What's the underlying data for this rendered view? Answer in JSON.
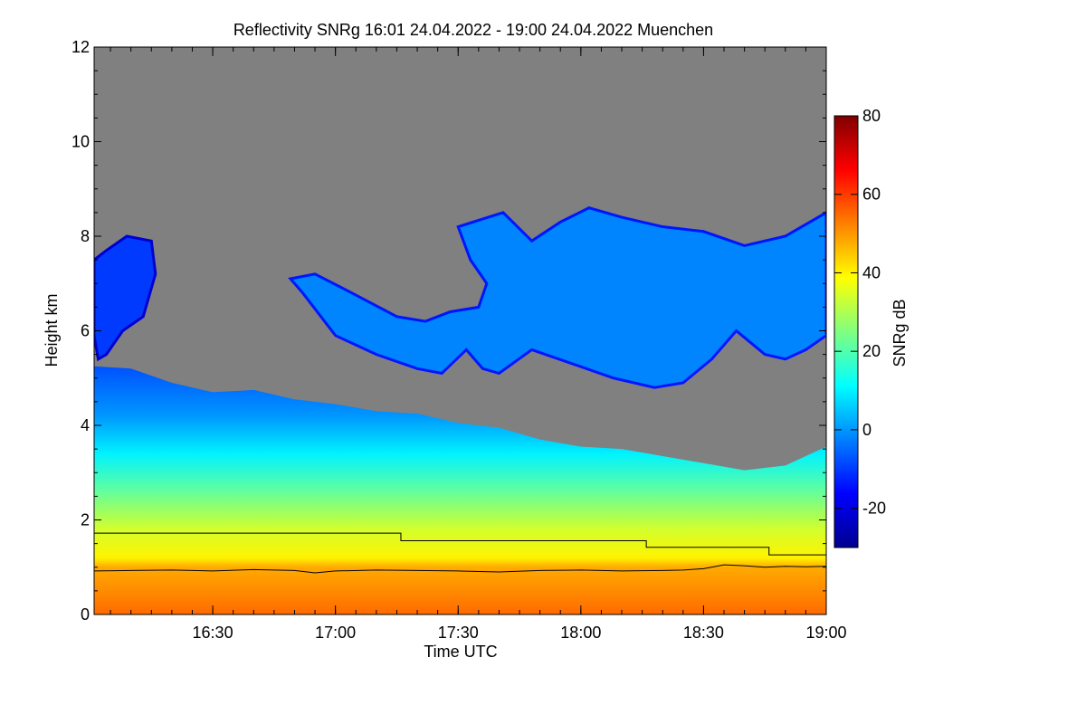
{
  "chart_data": {
    "type": "heatmap",
    "title": "Reflectivity SNRg   16:01 24.04.2022 - 19:00 24.04.2022 Muenchen",
    "xlabel": "Time UTC",
    "ylabel": "Height km",
    "x_unit": "minutes after 16:00 UTC",
    "xlim": [
      1,
      180
    ],
    "ylim": [
      0,
      12
    ],
    "x_ticks": [
      {
        "value": 30,
        "label": "16:30"
      },
      {
        "value": 60,
        "label": "17:00"
      },
      {
        "value": 90,
        "label": "17:30"
      },
      {
        "value": 120,
        "label": "18:00"
      },
      {
        "value": 150,
        "label": "18:30"
      },
      {
        "value": 180,
        "label": "19:00"
      }
    ],
    "y_ticks": [
      0,
      2,
      4,
      6,
      8,
      10,
      12
    ],
    "colorbar": {
      "label": "SNRg dB",
      "range": [
        -30,
        80
      ],
      "ticks": [
        -20,
        0,
        20,
        40,
        60,
        80
      ],
      "colors": [
        "#00008f",
        "#0000ff",
        "#0080ff",
        "#00ffff",
        "#80ff80",
        "#ffff00",
        "#ff8000",
        "#ff0000",
        "#800000"
      ]
    },
    "background_color": "#808080",
    "layers": [
      {
        "name": "low-cloud-precipitation",
        "top_km": [
          [
            1,
            5.25
          ],
          [
            10,
            5.2
          ],
          [
            20,
            4.9
          ],
          [
            30,
            4.7
          ],
          [
            40,
            4.75
          ],
          [
            50,
            4.55
          ],
          [
            60,
            4.45
          ],
          [
            70,
            4.3
          ],
          [
            80,
            4.25
          ],
          [
            90,
            4.05
          ],
          [
            100,
            3.95
          ],
          [
            110,
            3.7
          ],
          [
            120,
            3.55
          ],
          [
            130,
            3.5
          ],
          [
            140,
            3.35
          ],
          [
            150,
            3.2
          ],
          [
            160,
            3.05
          ],
          [
            170,
            3.15
          ],
          [
            180,
            3.55
          ]
        ],
        "bottom_km": 0,
        "snr_profile_db": [
          [
            0,
            55
          ],
          [
            0.4,
            52
          ],
          [
            1.0,
            48
          ],
          [
            1.2,
            40
          ],
          [
            1.8,
            34
          ],
          [
            2.6,
            22
          ],
          [
            3.4,
            10
          ],
          [
            4.2,
            0
          ],
          [
            5.3,
            -8
          ]
        ]
      },
      {
        "name": "mid-level-cloud-left",
        "outline_km": [
          [
            1,
            7.5
          ],
          [
            4,
            7.7
          ],
          [
            9,
            8.0
          ],
          [
            15,
            7.9
          ],
          [
            16,
            7.2
          ],
          [
            13,
            6.3
          ],
          [
            8,
            6.0
          ],
          [
            4,
            5.5
          ],
          [
            2,
            5.4
          ],
          [
            1,
            5.9
          ]
        ],
        "snr_db": -10
      },
      {
        "name": "mid-level-cloud-right",
        "outline_km": [
          [
            49,
            7.1
          ],
          [
            55,
            7.2
          ],
          [
            64,
            6.8
          ],
          [
            75,
            6.3
          ],
          [
            82,
            6.2
          ],
          [
            88,
            6.4
          ],
          [
            95,
            6.5
          ],
          [
            97,
            7.0
          ],
          [
            93,
            7.5
          ],
          [
            90,
            8.2
          ],
          [
            101,
            8.5
          ],
          [
            108,
            7.9
          ],
          [
            115,
            8.3
          ],
          [
            122,
            8.6
          ],
          [
            130,
            8.4
          ],
          [
            140,
            8.2
          ],
          [
            150,
            8.1
          ],
          [
            160,
            7.8
          ],
          [
            170,
            8.0
          ],
          [
            180,
            8.5
          ],
          [
            180,
            5.9
          ],
          [
            175,
            5.6
          ],
          [
            170,
            5.4
          ],
          [
            165,
            5.5
          ],
          [
            158,
            6.0
          ],
          [
            152,
            5.4
          ],
          [
            145,
            4.9
          ],
          [
            138,
            4.8
          ],
          [
            128,
            5.0
          ],
          [
            118,
            5.3
          ],
          [
            108,
            5.6
          ],
          [
            100,
            5.1
          ],
          [
            96,
            5.2
          ],
          [
            92,
            5.6
          ],
          [
            86,
            5.1
          ],
          [
            80,
            5.2
          ],
          [
            70,
            5.5
          ],
          [
            60,
            5.9
          ],
          [
            52,
            6.8
          ]
        ],
        "snr_db": -2
      }
    ],
    "series": [
      {
        "name": "upper-layer-height-line",
        "x": [
          1,
          76,
          76,
          136,
          136,
          166,
          166,
          180
        ],
        "y": [
          1.72,
          1.72,
          1.56,
          1.56,
          1.42,
          1.42,
          1.26,
          1.26
        ],
        "color": "#000000"
      },
      {
        "name": "lower-layer-height-line",
        "x": [
          1,
          10,
          20,
          30,
          40,
          50,
          55,
          60,
          70,
          80,
          90,
          100,
          110,
          120,
          130,
          140,
          145,
          150,
          155,
          160,
          165,
          170,
          175,
          180
        ],
        "y": [
          0.92,
          0.93,
          0.94,
          0.92,
          0.95,
          0.93,
          0.88,
          0.92,
          0.94,
          0.93,
          0.92,
          0.9,
          0.93,
          0.94,
          0.92,
          0.93,
          0.94,
          0.97,
          1.05,
          1.03,
          1.0,
          1.02,
          1.01,
          1.02
        ],
        "color": "#000000"
      }
    ]
  }
}
